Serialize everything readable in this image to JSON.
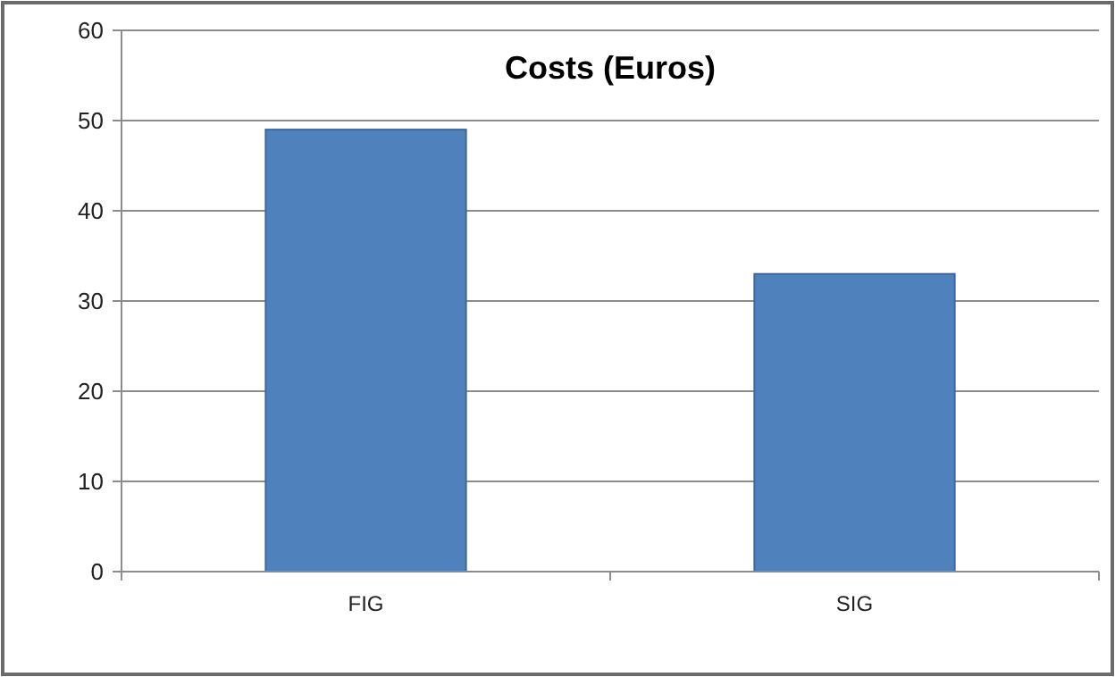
{
  "chart_data": {
    "type": "bar",
    "title": "Costs (Euros)",
    "categories": [
      "FIG",
      "SIG"
    ],
    "values": [
      49,
      33
    ],
    "color": "#4f81bd",
    "ylim": [
      0,
      60
    ],
    "yticks": [
      0,
      10,
      20,
      30,
      40,
      50,
      60
    ],
    "grid": "y"
  }
}
